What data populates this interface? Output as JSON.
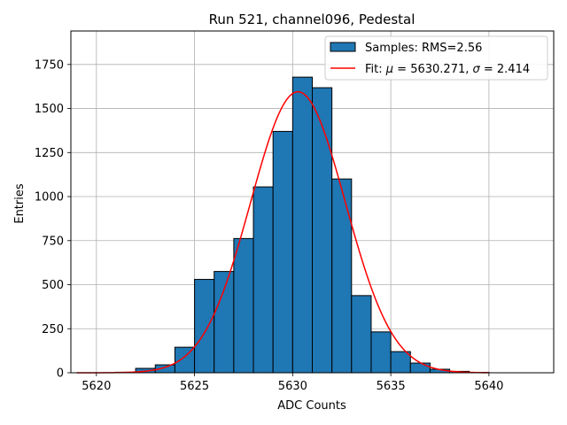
{
  "chart_data": {
    "type": "bar",
    "title": "Run 521, channel096, Pedestal",
    "xlabel": "ADC Counts",
    "ylabel": "Entries",
    "xlim": [
      5618.7,
      5643.3
    ],
    "ylim": [
      0,
      1940
    ],
    "xticks": [
      5620,
      5625,
      5630,
      5635,
      5640
    ],
    "yticks": [
      0,
      250,
      500,
      750,
      1000,
      1250,
      1500,
      1750
    ],
    "grid": true,
    "legend_position": "top-right",
    "histogram": {
      "name": "Samples: RMS=2.56",
      "color": "#1f77b4",
      "edge_color": "#000000",
      "bins": [
        {
          "left": 5621.0,
          "right": 5622.0,
          "count": 3
        },
        {
          "left": 5622.0,
          "right": 5623.0,
          "count": 25
        },
        {
          "left": 5623.0,
          "right": 5624.0,
          "count": 45
        },
        {
          "left": 5624.0,
          "right": 5625.0,
          "count": 145
        },
        {
          "left": 5625.0,
          "right": 5626.0,
          "count": 530
        },
        {
          "left": 5626.0,
          "right": 5627.0,
          "count": 575
        },
        {
          "left": 5627.0,
          "right": 5628.0,
          "count": 762
        },
        {
          "left": 5628.0,
          "right": 5629.0,
          "count": 1055
        },
        {
          "left": 5629.0,
          "right": 5630.0,
          "count": 1370
        },
        {
          "left": 5630.0,
          "right": 5631.0,
          "count": 1678
        },
        {
          "left": 5631.0,
          "right": 5632.0,
          "count": 1618
        },
        {
          "left": 5632.0,
          "right": 5633.0,
          "count": 1100
        },
        {
          "left": 5633.0,
          "right": 5634.0,
          "count": 438
        },
        {
          "left": 5634.0,
          "right": 5635.0,
          "count": 232
        },
        {
          "left": 5635.0,
          "right": 5636.0,
          "count": 120
        },
        {
          "left": 5636.0,
          "right": 5637.0,
          "count": 55
        },
        {
          "left": 5637.0,
          "right": 5638.0,
          "count": 20
        },
        {
          "left": 5638.0,
          "right": 5639.0,
          "count": 8
        },
        {
          "left": 5639.0,
          "right": 5640.0,
          "count": 2
        }
      ]
    },
    "fit": {
      "name_prefix": "Fit: ",
      "mu_symbol": "μ",
      "mu_text": " = 5630.271, ",
      "sigma_symbol": "σ",
      "sigma_text": " = 2.414",
      "color": "#ff0000",
      "mu": 5630.271,
      "sigma": 2.414,
      "amplitude": 1595,
      "x_range": [
        5619.0,
        5640.0
      ]
    }
  }
}
